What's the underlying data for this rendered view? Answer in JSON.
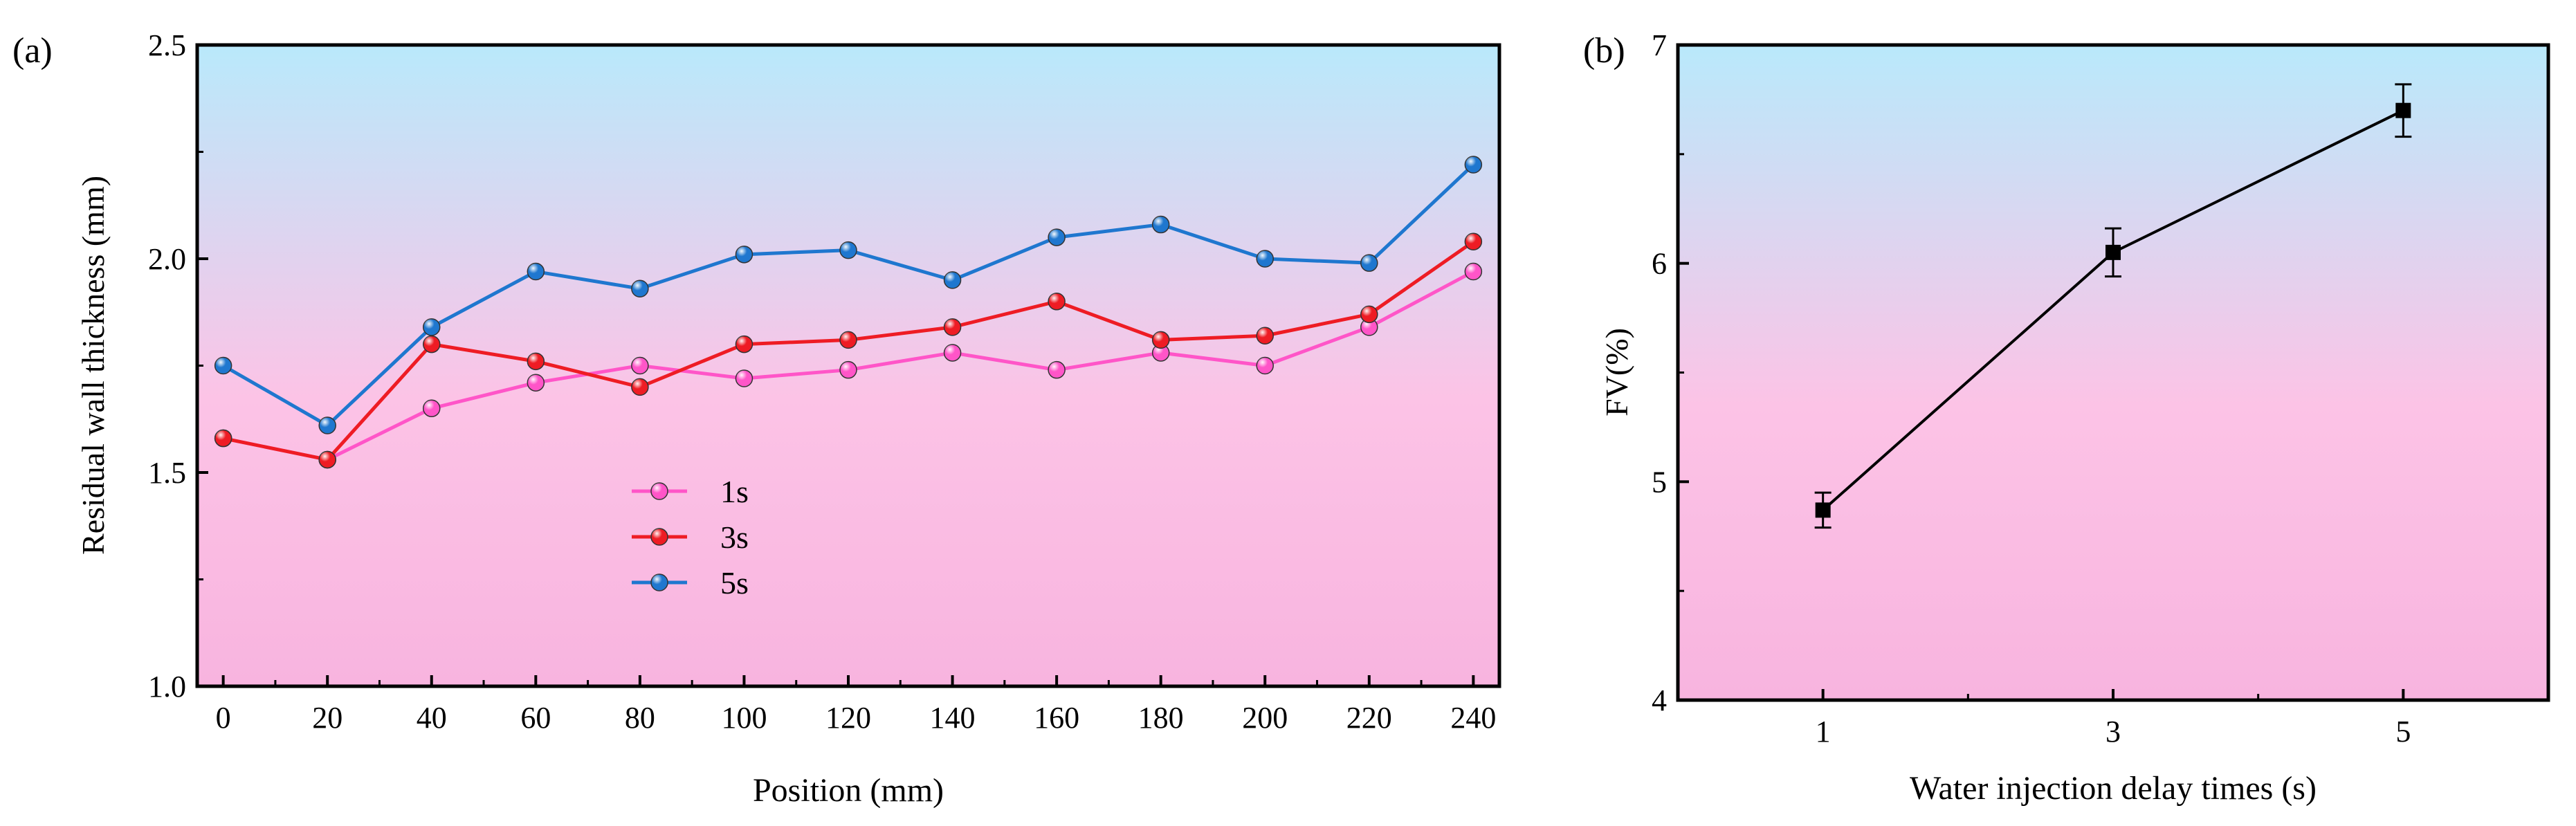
{
  "chart_data": [
    {
      "panel_label": "(a)",
      "type": "line",
      "xlabel": "Position (mm)",
      "ylabel": "Residual wall thickness (mm)",
      "xlim": [
        -5,
        245
      ],
      "ylim": [
        1.0,
        2.5
      ],
      "xticks": [
        "0",
        "20",
        "40",
        "60",
        "80",
        "100",
        "120",
        "140",
        "160",
        "180",
        "200",
        "220",
        "240"
      ],
      "yticks": [
        "1.0",
        "1.5",
        "2.0",
        "2.5"
      ],
      "x": [
        0,
        20,
        40,
        60,
        80,
        100,
        120,
        140,
        160,
        180,
        200,
        220,
        240
      ],
      "legend_position": "lower-center",
      "series": [
        {
          "name": "1s",
          "color": "#ff55c8",
          "values": [
            1.58,
            1.53,
            1.65,
            1.71,
            1.75,
            1.72,
            1.74,
            1.78,
            1.74,
            1.78,
            1.75,
            1.84,
            1.97
          ]
        },
        {
          "name": "3s",
          "color": "#ee1c24",
          "values": [
            1.58,
            1.53,
            1.8,
            1.76,
            1.7,
            1.8,
            1.81,
            1.84,
            1.9,
            1.81,
            1.82,
            1.87,
            2.04
          ]
        },
        {
          "name": "5s",
          "color": "#1f77cf",
          "values": [
            1.75,
            1.61,
            1.84,
            1.97,
            1.93,
            2.01,
            2.02,
            1.95,
            2.05,
            2.08,
            2.0,
            1.99,
            2.22
          ]
        }
      ],
      "background_gradient": [
        "#b9e9fb",
        "#fcc3e6",
        "#f8b4df"
      ]
    },
    {
      "panel_label": "(b)",
      "type": "line",
      "xlabel": "Water injection delay times (s)",
      "ylabel": "FV(%)",
      "xlim": [
        0,
        6
      ],
      "ylim": [
        4,
        7
      ],
      "xticks": [
        "1",
        "3",
        "5"
      ],
      "yticks": [
        "4",
        "5",
        "6",
        "7"
      ],
      "series": [
        {
          "name": "FV",
          "color": "#000000",
          "x": [
            1,
            3,
            5
          ],
          "values": [
            4.87,
            6.05,
            6.7
          ],
          "errors": [
            0.08,
            0.11,
            0.12
          ]
        }
      ],
      "background_gradient": [
        "#b9e9fb",
        "#fcc3e6",
        "#f8b4df"
      ]
    }
  ]
}
